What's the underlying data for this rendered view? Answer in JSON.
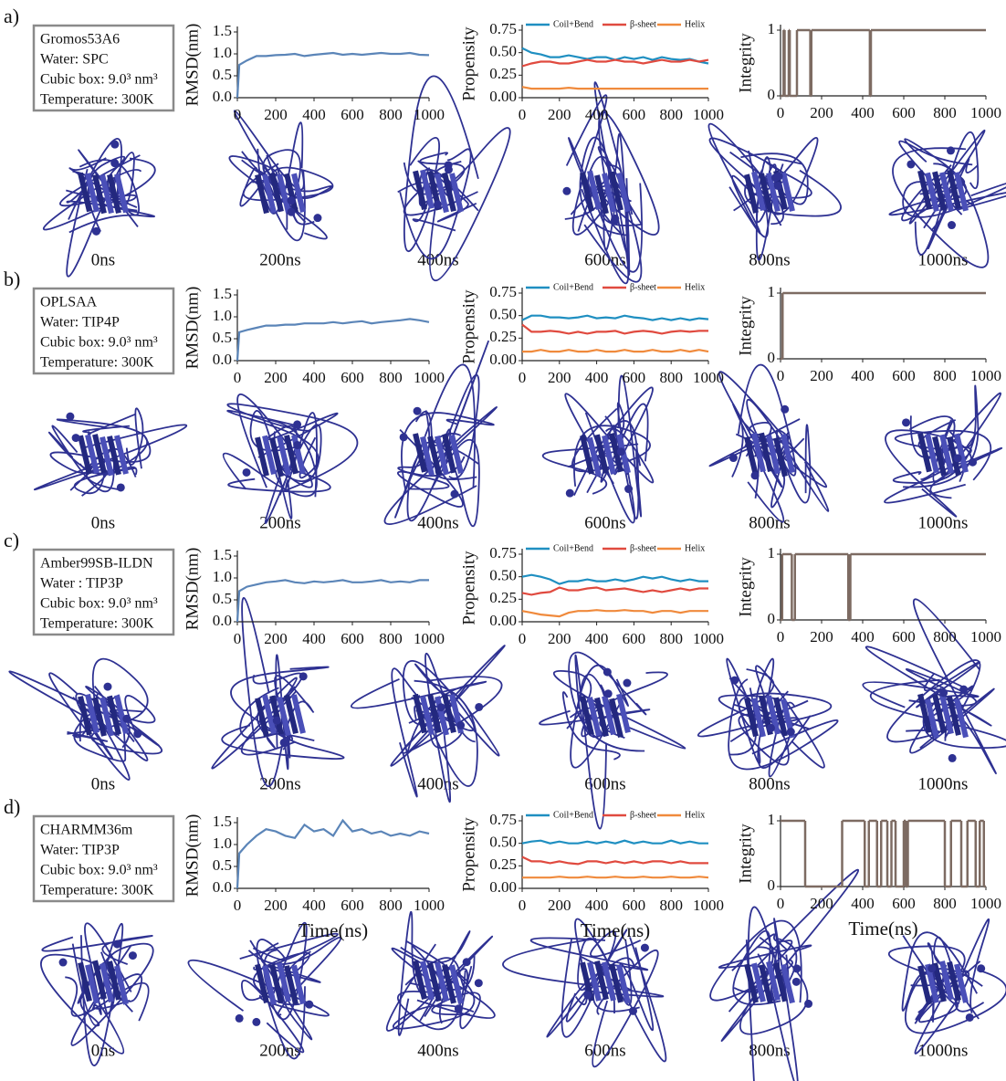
{
  "panels": [
    {
      "label": "a)",
      "info": [
        "Gromos53A6",
        "Water: SPC",
        "Cubic box: 9.0³ nm³",
        "Temperature: 300K"
      ],
      "snapshots": [
        "0ns",
        "200ns",
        "400ns",
        "600ns",
        "800ns",
        "1000ns"
      ]
    },
    {
      "label": "b)",
      "info": [
        "OPLSAA",
        "Water: TIP4P",
        "Cubic box: 9.0³ nm³",
        "Temperature: 300K"
      ],
      "snapshots": [
        "0ns",
        "200ns",
        "400ns",
        "600ns",
        "800ns",
        "1000ns"
      ]
    },
    {
      "label": "c)",
      "info": [
        "Amber99SB-ILDN",
        "Water : TIP3P",
        "Cubic box: 9.0³ nm³",
        "Temperature: 300K"
      ],
      "snapshots": [
        "0ns",
        "200ns",
        "400ns",
        "600ns",
        "800ns",
        "1000ns"
      ]
    },
    {
      "label": "d)",
      "info": [
        "CHARMM36m",
        "Water: TIP3P",
        "Cubic box: 9.0³ nm³",
        "Temperature: 300K"
      ],
      "snapshots": [
        "0ns",
        "200ns",
        "400ns",
        "600ns",
        "800ns",
        "1000ns"
      ]
    }
  ],
  "chart_data": [
    {
      "type": "line",
      "ylabel": "RMSD(nm)",
      "x": [
        0,
        10,
        50,
        100,
        150,
        200,
        250,
        300,
        350,
        400,
        450,
        500,
        550,
        600,
        650,
        700,
        750,
        800,
        850,
        900,
        950,
        1000
      ],
      "series": [
        {
          "color": "#5b85b8",
          "values": [
            0,
            0.75,
            0.85,
            0.95,
            0.95,
            0.97,
            0.98,
            1.0,
            0.95,
            0.98,
            1.0,
            1.02,
            0.98,
            1.0,
            0.98,
            1.0,
            1.02,
            1.0,
            1.0,
            1.02,
            0.98,
            0.97
          ]
        }
      ],
      "xlim": [
        0,
        1000
      ],
      "ylim": [
        0,
        1.5
      ],
      "xticks": [
        0,
        200,
        400,
        600,
        800,
        1000
      ],
      "yticks": [
        {
          "value": 0,
          "label": "0.0"
        },
        {
          "value": 0.5,
          "label": "0.5"
        },
        {
          "value": 1,
          "label": "1.0"
        },
        {
          "value": 1.5,
          "label": "1.5"
        }
      ]
    },
    {
      "type": "line",
      "ylabel": "Propensity",
      "x": [
        0,
        50,
        100,
        150,
        200,
        250,
        300,
        350,
        400,
        450,
        500,
        550,
        600,
        650,
        700,
        750,
        800,
        850,
        900,
        950,
        1000
      ],
      "series": [
        {
          "name": "Coil+Bend",
          "color": "#1f8fc1",
          "values": [
            0.55,
            0.5,
            0.48,
            0.45,
            0.45,
            0.47,
            0.45,
            0.43,
            0.45,
            0.45,
            0.42,
            0.45,
            0.43,
            0.45,
            0.42,
            0.45,
            0.43,
            0.42,
            0.43,
            0.4,
            0.38
          ]
        },
        {
          "name": "β-sheet",
          "color": "#e04a3f",
          "values": [
            0.35,
            0.38,
            0.4,
            0.4,
            0.38,
            0.38,
            0.4,
            0.42,
            0.4,
            0.4,
            0.42,
            0.4,
            0.4,
            0.38,
            0.4,
            0.42,
            0.4,
            0.4,
            0.42,
            0.4,
            0.42
          ]
        },
        {
          "name": "Helix",
          "color": "#f08a3c",
          "values": [
            0.12,
            0.1,
            0.1,
            0.1,
            0.1,
            0.11,
            0.1,
            0.1,
            0.1,
            0.1,
            0.1,
            0.1,
            0.1,
            0.1,
            0.1,
            0.1,
            0.1,
            0.1,
            0.1,
            0.1,
            0.1
          ]
        }
      ],
      "xlim": [
        0,
        1000
      ],
      "ylim": [
        0,
        0.75
      ],
      "xticks": [
        0,
        200,
        400,
        600,
        800,
        1000
      ],
      "yticks": [
        {
          "value": 0,
          "label": "0.00"
        },
        0.25,
        {
          "value": 0.5,
          "label": "0.50"
        },
        0.75
      ]
    },
    {
      "type": "step",
      "ylabel": "Integrity",
      "x": [
        0,
        15,
        20,
        40,
        45,
        80,
        145,
        150,
        435,
        440,
        1000
      ],
      "values": [
        0,
        1,
        0,
        1,
        0,
        1,
        0,
        1,
        0,
        1,
        1
      ],
      "color": "#7d6b62",
      "xlim": [
        0,
        1000
      ],
      "ylim": [
        0,
        1
      ],
      "xticks": [
        0,
        200,
        400,
        600,
        800,
        1000
      ],
      "yticks": [
        0,
        1
      ]
    },
    {
      "type": "line",
      "ylabel": "RMSD(nm)",
      "x": [
        0,
        10,
        50,
        100,
        150,
        200,
        250,
        300,
        350,
        400,
        450,
        500,
        550,
        600,
        650,
        700,
        750,
        800,
        850,
        900,
        950,
        1000
      ],
      "series": [
        {
          "color": "#5b85b8",
          "values": [
            0,
            0.65,
            0.7,
            0.75,
            0.8,
            0.8,
            0.82,
            0.82,
            0.85,
            0.85,
            0.85,
            0.88,
            0.85,
            0.88,
            0.9,
            0.85,
            0.88,
            0.9,
            0.92,
            0.95,
            0.92,
            0.88
          ]
        }
      ],
      "xlim": [
        0,
        1000
      ],
      "ylim": [
        0,
        1.5
      ],
      "xticks": [
        0,
        200,
        400,
        600,
        800,
        1000
      ],
      "yticks": [
        {
          "value": 0,
          "label": "0.0"
        },
        {
          "value": 0.5,
          "label": "0.5"
        },
        {
          "value": 1,
          "label": "1.0"
        },
        {
          "value": 1.5,
          "label": "1.5"
        }
      ]
    },
    {
      "type": "line",
      "ylabel": "Propensity",
      "x": [
        0,
        50,
        100,
        150,
        200,
        250,
        300,
        350,
        400,
        450,
        500,
        550,
        600,
        650,
        700,
        750,
        800,
        850,
        900,
        950,
        1000
      ],
      "series": [
        {
          "name": "Coil+Bend",
          "color": "#1f8fc1",
          "values": [
            0.45,
            0.5,
            0.5,
            0.48,
            0.48,
            0.47,
            0.48,
            0.5,
            0.47,
            0.48,
            0.47,
            0.5,
            0.48,
            0.47,
            0.45,
            0.47,
            0.45,
            0.47,
            0.45,
            0.47,
            0.46
          ]
        },
        {
          "name": "β-sheet",
          "color": "#e04a3f",
          "values": [
            0.4,
            0.32,
            0.32,
            0.33,
            0.32,
            0.3,
            0.32,
            0.3,
            0.32,
            0.32,
            0.33,
            0.3,
            0.32,
            0.33,
            0.32,
            0.3,
            0.32,
            0.33,
            0.32,
            0.33,
            0.33
          ]
        },
        {
          "name": "Helix",
          "color": "#f08a3c",
          "values": [
            0.1,
            0.1,
            0.12,
            0.1,
            0.1,
            0.12,
            0.1,
            0.1,
            0.12,
            0.1,
            0.1,
            0.12,
            0.1,
            0.1,
            0.12,
            0.1,
            0.1,
            0.12,
            0.1,
            0.12,
            0.1
          ]
        }
      ],
      "xlim": [
        0,
        1000
      ],
      "ylim": [
        0,
        0.75
      ],
      "xticks": [
        0,
        200,
        400,
        600,
        800,
        1000
      ],
      "yticks": [
        {
          "value": 0,
          "label": "0.00"
        },
        0.25,
        {
          "value": 0.5,
          "label": "0.50"
        },
        0.75
      ]
    },
    {
      "type": "step",
      "ylabel": "Integrity",
      "x": [
        0,
        10,
        1000
      ],
      "values": [
        0,
        1,
        1
      ],
      "color": "#7d6b62",
      "xlim": [
        0,
        1000
      ],
      "ylim": [
        0,
        1
      ],
      "xticks": [
        0,
        200,
        400,
        600,
        800,
        1000
      ],
      "yticks": [
        0,
        1
      ]
    },
    {
      "type": "line",
      "ylabel": "RMSD(nm)",
      "x": [
        0,
        10,
        50,
        100,
        150,
        200,
        250,
        300,
        350,
        400,
        450,
        500,
        550,
        600,
        650,
        700,
        750,
        800,
        850,
        900,
        950,
        1000
      ],
      "series": [
        {
          "color": "#5b85b8",
          "values": [
            0,
            0.7,
            0.8,
            0.85,
            0.9,
            0.92,
            0.95,
            0.9,
            0.88,
            0.92,
            0.9,
            0.92,
            0.95,
            0.9,
            0.9,
            0.92,
            0.95,
            0.9,
            0.92,
            0.9,
            0.95,
            0.95
          ]
        }
      ],
      "xlim": [
        0,
        1000
      ],
      "ylim": [
        0,
        1.5
      ],
      "xticks": [
        0,
        200,
        400,
        600,
        800,
        1000
      ],
      "yticks": [
        {
          "value": 0,
          "label": "0.0"
        },
        {
          "value": 0.5,
          "label": "0.5"
        },
        {
          "value": 1,
          "label": "1.0"
        },
        {
          "value": 1.5,
          "label": "1.5"
        }
      ]
    },
    {
      "type": "line",
      "ylabel": "Propensity",
      "x": [
        0,
        50,
        100,
        150,
        200,
        250,
        300,
        350,
        400,
        450,
        500,
        550,
        600,
        650,
        700,
        750,
        800,
        850,
        900,
        950,
        1000
      ],
      "series": [
        {
          "name": "Coil+Bend",
          "color": "#1f8fc1",
          "values": [
            0.5,
            0.52,
            0.5,
            0.47,
            0.42,
            0.45,
            0.45,
            0.47,
            0.45,
            0.45,
            0.47,
            0.45,
            0.47,
            0.5,
            0.48,
            0.5,
            0.47,
            0.45,
            0.47,
            0.45,
            0.45
          ]
        },
        {
          "name": "β-sheet",
          "color": "#e04a3f",
          "values": [
            0.32,
            0.3,
            0.32,
            0.33,
            0.38,
            0.35,
            0.35,
            0.37,
            0.38,
            0.35,
            0.36,
            0.37,
            0.35,
            0.33,
            0.35,
            0.33,
            0.35,
            0.37,
            0.35,
            0.37,
            0.37
          ]
        },
        {
          "name": "Helix",
          "color": "#f08a3c",
          "values": [
            0.12,
            0.1,
            0.08,
            0.07,
            0.06,
            0.1,
            0.12,
            0.12,
            0.13,
            0.12,
            0.12,
            0.13,
            0.12,
            0.12,
            0.1,
            0.12,
            0.12,
            0.1,
            0.12,
            0.12,
            0.12
          ]
        }
      ],
      "xlim": [
        0,
        1000
      ],
      "ylim": [
        0,
        0.75
      ],
      "xticks": [
        0,
        200,
        400,
        600,
        800,
        1000
      ],
      "yticks": [
        {
          "value": 0,
          "label": "0.00"
        },
        0.25,
        {
          "value": 0.5,
          "label": "0.50"
        },
        0.75
      ]
    },
    {
      "type": "step",
      "ylabel": "Integrity",
      "x": [
        0,
        8,
        55,
        70,
        330,
        340,
        1000
      ],
      "values": [
        0,
        1,
        0,
        1,
        0,
        1,
        1
      ],
      "color": "#7d6b62",
      "xlim": [
        0,
        1000
      ],
      "ylim": [
        0,
        1
      ],
      "xticks": [
        0,
        200,
        400,
        600,
        800,
        1000
      ],
      "yticks": [
        0,
        1
      ]
    },
    {
      "type": "line",
      "ylabel": "RMSD(nm)",
      "xlabel": "Time(ns)",
      "x": [
        0,
        10,
        50,
        100,
        150,
        200,
        250,
        300,
        350,
        400,
        450,
        500,
        550,
        600,
        650,
        700,
        750,
        800,
        850,
        900,
        950,
        1000
      ],
      "series": [
        {
          "color": "#5b85b8",
          "values": [
            0,
            0.8,
            1.0,
            1.2,
            1.35,
            1.3,
            1.2,
            1.15,
            1.45,
            1.3,
            1.35,
            1.2,
            1.55,
            1.3,
            1.35,
            1.25,
            1.3,
            1.2,
            1.25,
            1.2,
            1.3,
            1.25
          ]
        }
      ],
      "xlim": [
        0,
        1000
      ],
      "ylim": [
        0,
        1.5
      ],
      "xticks": [
        0,
        200,
        400,
        600,
        800,
        1000
      ],
      "yticks": [
        {
          "value": 0,
          "label": "0.0"
        },
        {
          "value": 0.5,
          "label": "0.5"
        },
        {
          "value": 1,
          "label": "1.0"
        },
        {
          "value": 1.5,
          "label": "1.5"
        }
      ]
    },
    {
      "type": "line",
      "ylabel": "Propensity",
      "xlabel": "Time(ns)",
      "x": [
        0,
        50,
        100,
        150,
        200,
        250,
        300,
        350,
        400,
        450,
        500,
        550,
        600,
        650,
        700,
        750,
        800,
        850,
        900,
        950,
        1000
      ],
      "series": [
        {
          "name": "Coil+Bend",
          "color": "#1f8fc1",
          "values": [
            0.5,
            0.52,
            0.53,
            0.5,
            0.52,
            0.5,
            0.5,
            0.52,
            0.5,
            0.52,
            0.5,
            0.53,
            0.5,
            0.52,
            0.5,
            0.5,
            0.53,
            0.5,
            0.52,
            0.5,
            0.5
          ]
        },
        {
          "name": "β-sheet",
          "color": "#e04a3f",
          "values": [
            0.35,
            0.3,
            0.3,
            0.28,
            0.3,
            0.28,
            0.27,
            0.3,
            0.3,
            0.28,
            0.3,
            0.28,
            0.3,
            0.28,
            0.3,
            0.3,
            0.28,
            0.3,
            0.28,
            0.28,
            0.28
          ]
        },
        {
          "name": "Helix",
          "color": "#f08a3c",
          "values": [
            0.12,
            0.12,
            0.12,
            0.12,
            0.13,
            0.12,
            0.12,
            0.13,
            0.12,
            0.12,
            0.13,
            0.12,
            0.12,
            0.13,
            0.12,
            0.12,
            0.13,
            0.12,
            0.12,
            0.13,
            0.12
          ]
        }
      ],
      "xlim": [
        0,
        1000
      ],
      "ylim": [
        0,
        0.75
      ],
      "xticks": [
        0,
        200,
        400,
        600,
        800,
        1000
      ],
      "yticks": [
        {
          "value": 0,
          "label": "0.00"
        },
        0.25,
        {
          "value": 0.5,
          "label": "0.50"
        },
        0.75
      ]
    },
    {
      "type": "step",
      "ylabel": "Integrity",
      "xlabel": "Time(ns)",
      "x": [
        0,
        120,
        300,
        410,
        430,
        470,
        490,
        520,
        540,
        560,
        600,
        610,
        620,
        800,
        830,
        880,
        910,
        950,
        970,
        990,
        1000
      ],
      "values": [
        1,
        0,
        1,
        0,
        1,
        0,
        1,
        0,
        1,
        0,
        1,
        0,
        1,
        0,
        1,
        0,
        1,
        0,
        1,
        0,
        0
      ],
      "color": "#7d6b62",
      "xlim": [
        0,
        1000
      ],
      "ylim": [
        0,
        1
      ],
      "xticks": [
        0,
        200,
        400,
        600,
        800,
        1000
      ],
      "yticks": [
        0,
        1
      ]
    }
  ]
}
